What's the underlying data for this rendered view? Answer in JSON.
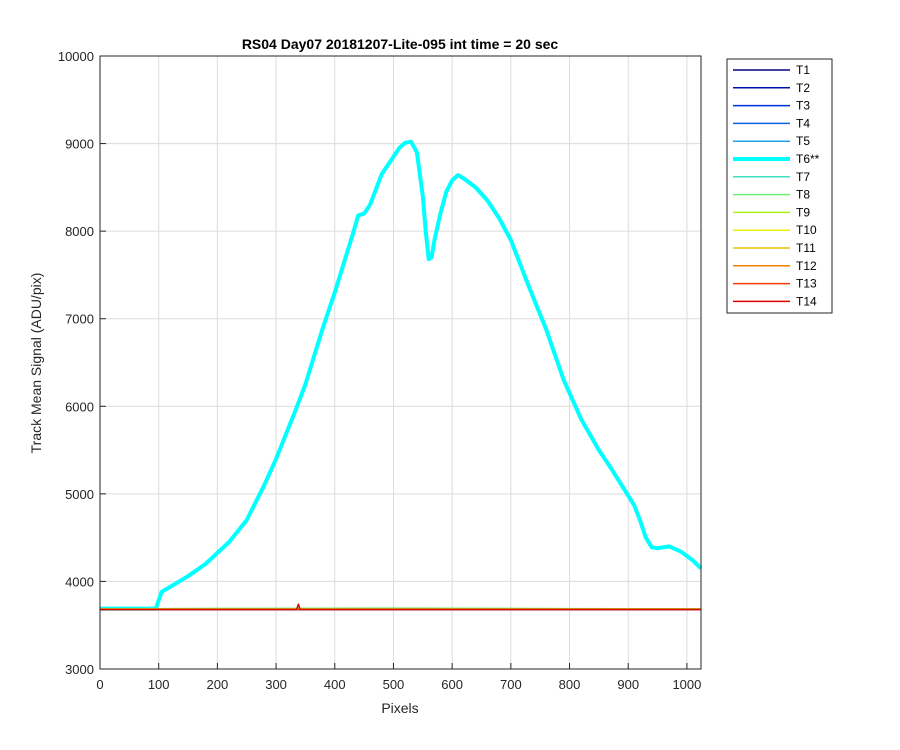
{
  "chart_data": {
    "type": "line",
    "title": "RS04 Day07 20181207-Lite-095 int time = 20 sec",
    "xlabel": "Pixels",
    "ylabel": "Track Mean Signal (ADU/pix)",
    "xlim": [
      0,
      1024
    ],
    "ylim": [
      3000,
      10000
    ],
    "xticks": [
      0,
      100,
      200,
      300,
      400,
      500,
      600,
      700,
      800,
      900,
      1000
    ],
    "yticks": [
      3000,
      4000,
      5000,
      6000,
      7000,
      8000,
      9000,
      10000
    ],
    "grid": true,
    "legend_position": "outside-right",
    "series": [
      {
        "name": "T1",
        "color": "#000080",
        "width": 1.5,
        "x": [
          0,
          1024
        ],
        "y": [
          3680,
          3680
        ]
      },
      {
        "name": "T2",
        "color": "#0010B0",
        "width": 1.5,
        "x": [
          0,
          1024
        ],
        "y": [
          3681,
          3681
        ]
      },
      {
        "name": "T3",
        "color": "#0030D8",
        "width": 1.5,
        "x": [
          0,
          1024
        ],
        "y": [
          3682,
          3682
        ]
      },
      {
        "name": "T4",
        "color": "#1060E0",
        "width": 1.5,
        "x": [
          0,
          1024
        ],
        "y": [
          3683,
          3683
        ]
      },
      {
        "name": "T5",
        "color": "#20A0E8",
        "width": 1.5,
        "x": [
          0,
          1024
        ],
        "y": [
          3684,
          3684
        ]
      },
      {
        "name": "T6**",
        "color": "#00FFFF",
        "width": 4,
        "x": [
          0,
          95,
          105,
          120,
          150,
          180,
          220,
          250,
          280,
          300,
          330,
          350,
          380,
          400,
          430,
          440,
          450,
          460,
          480,
          500,
          510,
          520,
          530,
          540,
          550,
          555,
          560,
          565,
          570,
          580,
          590,
          600,
          610,
          620,
          640,
          660,
          680,
          700,
          730,
          760,
          790,
          820,
          850,
          870,
          900,
          910,
          920,
          930,
          940,
          950,
          970,
          990,
          1010,
          1024
        ],
        "y": [
          3690,
          3690,
          3880,
          3940,
          4060,
          4200,
          4450,
          4700,
          5100,
          5400,
          5900,
          6250,
          6900,
          7300,
          7950,
          8180,
          8200,
          8300,
          8650,
          8850,
          8950,
          9010,
          9020,
          8900,
          8400,
          8000,
          7680,
          7700,
          7900,
          8200,
          8450,
          8580,
          8640,
          8600,
          8500,
          8350,
          8150,
          7900,
          7380,
          6880,
          6300,
          5850,
          5500,
          5300,
          4980,
          4870,
          4700,
          4500,
          4390,
          4380,
          4400,
          4340,
          4240,
          4150
        ]
      },
      {
        "name": "T7",
        "color": "#40E0C0",
        "width": 1.5,
        "x": [
          0,
          1024
        ],
        "y": [
          3686,
          3686
        ]
      },
      {
        "name": "T8",
        "color": "#70F070",
        "width": 1.5,
        "x": [
          0,
          200,
          500,
          800,
          1024
        ],
        "y": [
          3688,
          3692,
          3695,
          3690,
          3688
        ]
      },
      {
        "name": "T9",
        "color": "#B0F020",
        "width": 1.5,
        "x": [
          0,
          1024
        ],
        "y": [
          3685,
          3685
        ]
      },
      {
        "name": "T10",
        "color": "#F0F000",
        "width": 1.5,
        "x": [
          0,
          1024
        ],
        "y": [
          3684,
          3684
        ]
      },
      {
        "name": "T11",
        "color": "#F0C000",
        "width": 1.5,
        "x": [
          0,
          1024
        ],
        "y": [
          3683,
          3683
        ]
      },
      {
        "name": "T12",
        "color": "#F08000",
        "width": 1.5,
        "x": [
          0,
          1024
        ],
        "y": [
          3682,
          3682
        ]
      },
      {
        "name": "T13",
        "color": "#F04000",
        "width": 1.5,
        "x": [
          0,
          1024
        ],
        "y": [
          3681,
          3681
        ]
      },
      {
        "name": "T14",
        "color": "#E00000",
        "width": 1.5,
        "x": [
          0,
          335,
          338,
          341,
          344,
          1024
        ],
        "y": [
          3680,
          3680,
          3740,
          3680,
          3680,
          3680
        ]
      }
    ]
  }
}
